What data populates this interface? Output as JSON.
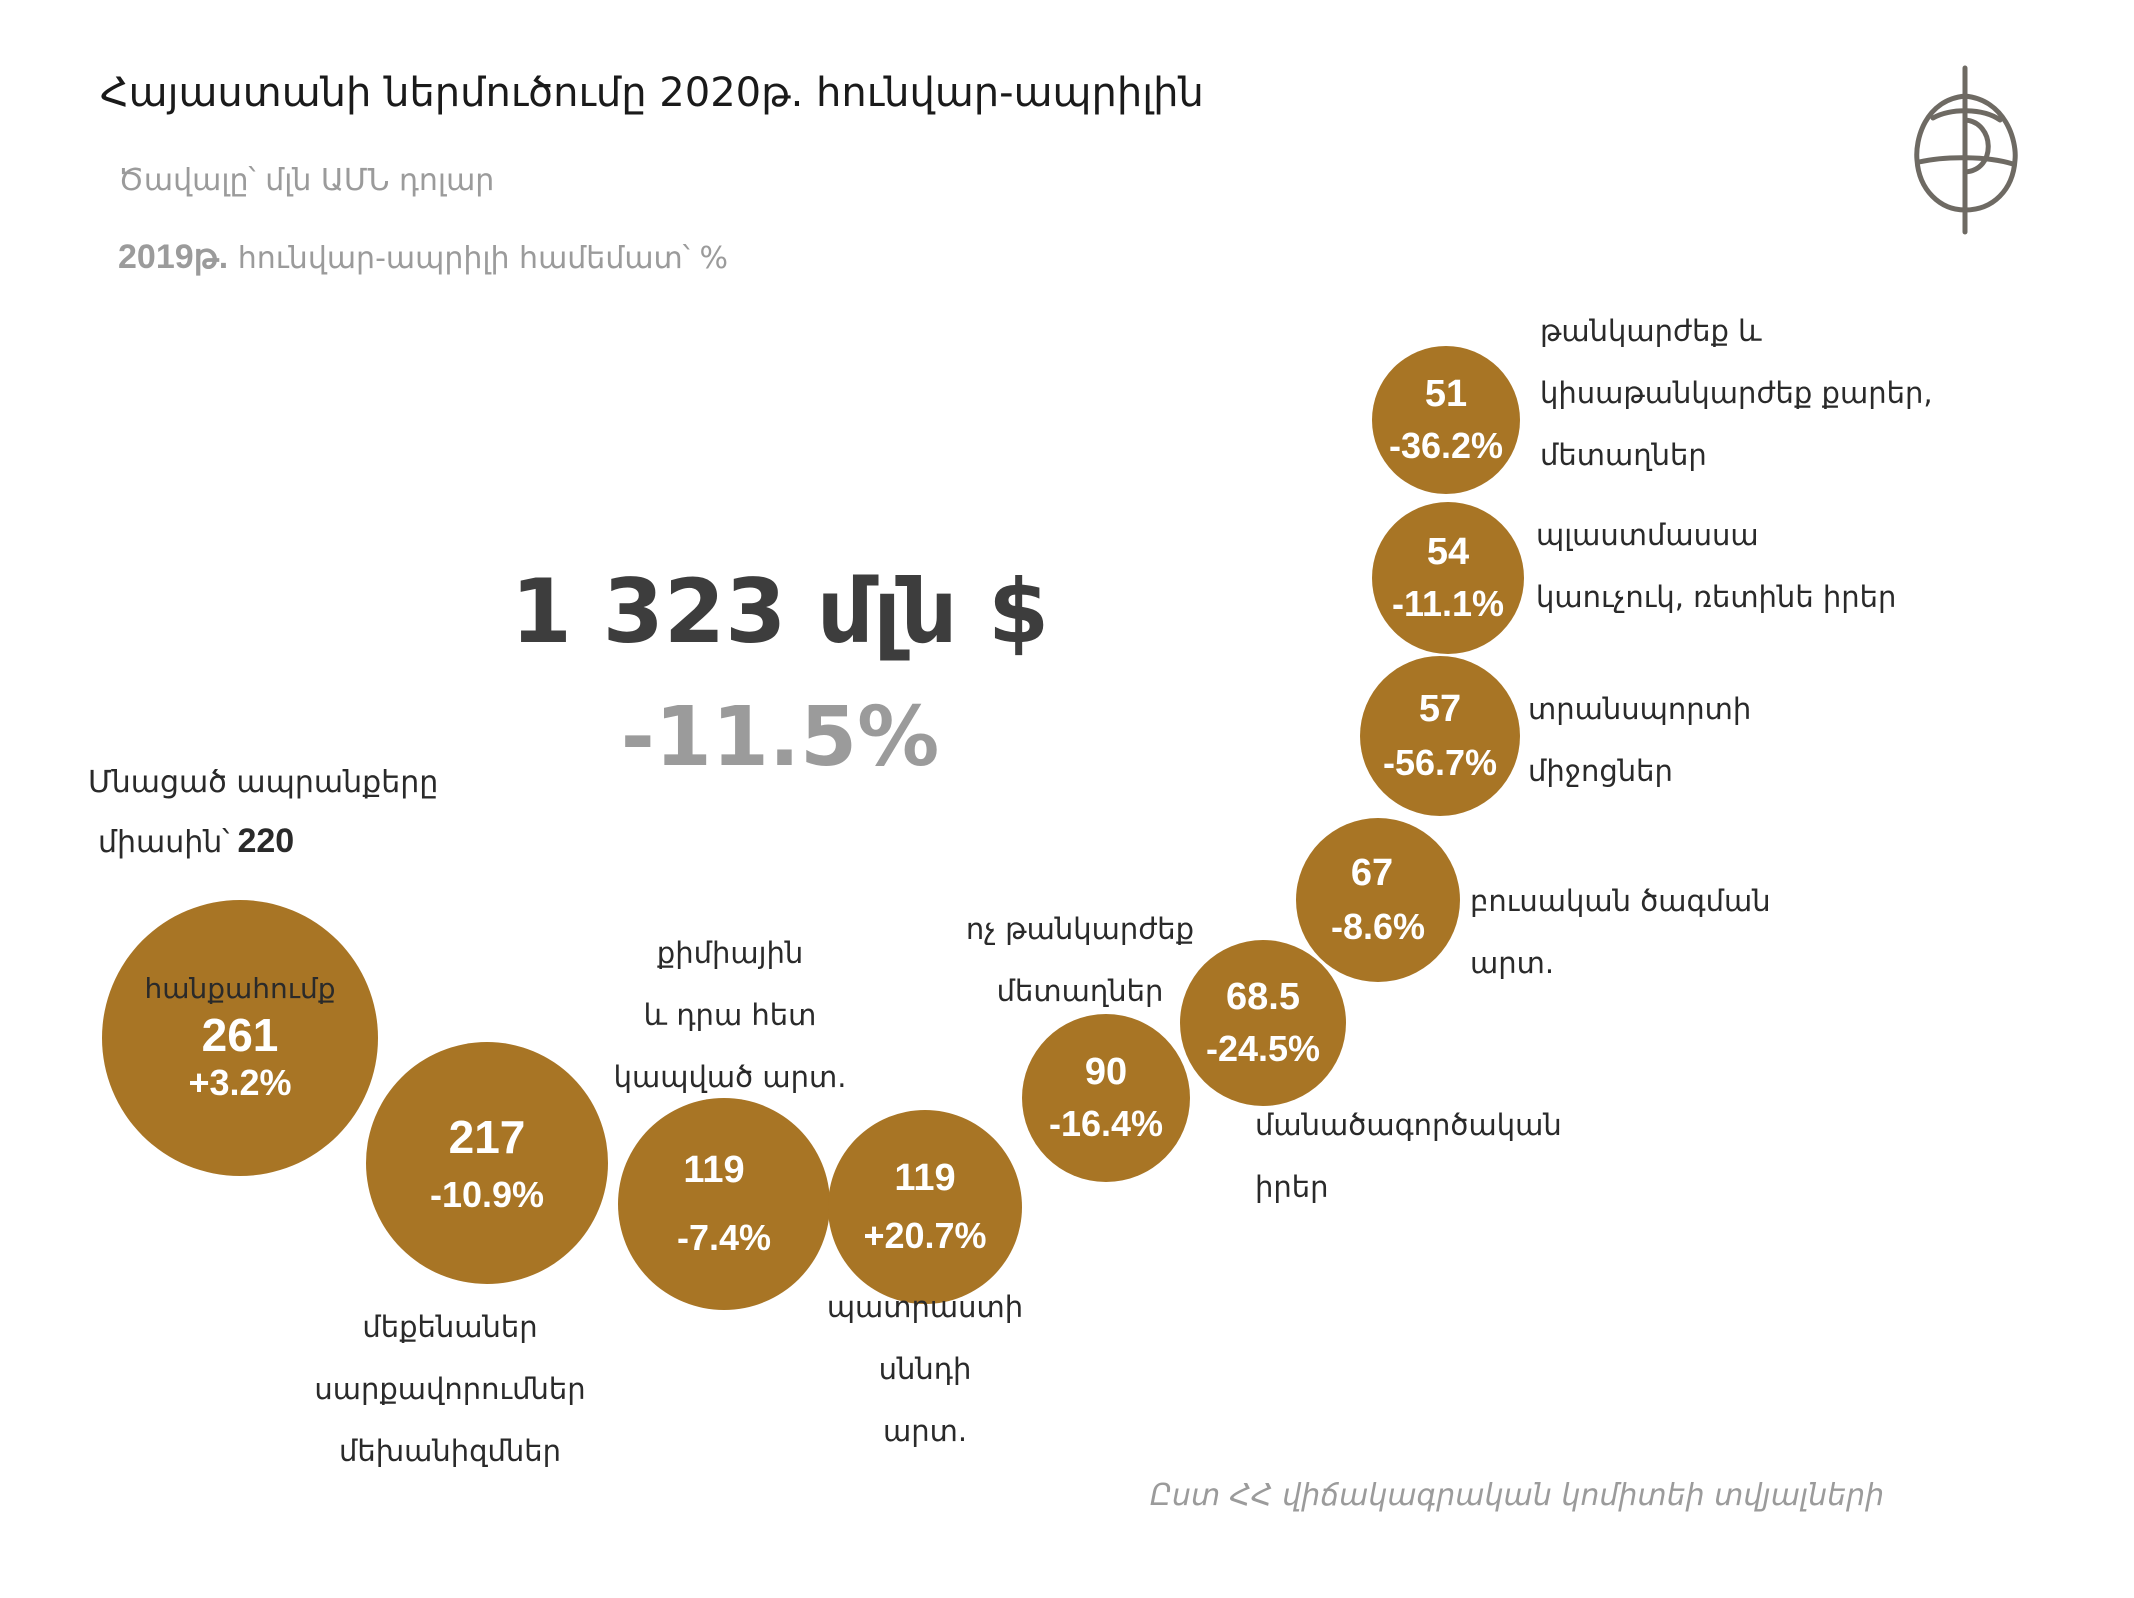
{
  "header": {
    "title": "Հայաստանի ներմուծումը 2020թ. հունվար-ապրիլին",
    "subtitle": "Ծավալը՝ մլն ԱՄՆ դոլար",
    "compare_year": "2019թ.",
    "compare_text": "հունվար-ապրիլի համեմատ՝ %"
  },
  "summary": {
    "total": "1 323 մլն $",
    "change": "-11.5%"
  },
  "rest": {
    "line1": "Մնացած ապրանքերը",
    "line2": "միասին՝",
    "value": "220"
  },
  "source": "Ըստ ՀՀ վիճակագրական կոմիտեի տվյալների",
  "chart_data": {
    "type": "bubble",
    "unit": "մլն ԱՄՆ դոլար",
    "categories": [
      "հանքահումք",
      "մեքենաներ սարքավորումներ մեխանիզմներ",
      "քիմիային և դրա հետ կապված արտ.",
      "պատրաստի սննդի արտ.",
      "ոչ թանկարժեք մետաղներ",
      "մանածագործական իրեր",
      "բուսական ծագման արտ.",
      "տրանսպորտի միջոցներ",
      "պլաստմասսա կաուչուկ, ռետինե իրեր",
      "թանկարժեք և կիսաթանկարժեք քարեր, մետաղներ"
    ],
    "values": [
      261,
      217,
      119,
      119,
      90,
      68.5,
      67,
      57,
      54,
      51
    ],
    "changes_pct": [
      3.2,
      -10.9,
      -7.4,
      20.7,
      -16.4,
      -24.5,
      -8.6,
      -56.7,
      -11.1,
      -36.2
    ],
    "display": [
      {
        "value": "261",
        "change": "+3.2%",
        "label_lines": [
          "հանքահումք"
        ]
      },
      {
        "value": "217",
        "change": "-10.9%",
        "label_lines": [
          "մեքենաներ",
          "սարքավորումներ",
          "մեխանիզմներ"
        ]
      },
      {
        "value": "119",
        "change": "-7.4%",
        "label_lines": [
          "քիմիային",
          "և դրա հետ",
          "կապված արտ."
        ]
      },
      {
        "value": "119",
        "change": "+20.7%",
        "label_lines": [
          "պատրաստի",
          "սննդի",
          "արտ."
        ]
      },
      {
        "value": "90",
        "change": "-16.4%",
        "label_lines": [
          "ոչ թանկարժեք",
          "մետաղներ"
        ]
      },
      {
        "value": "68.5",
        "change": "-24.5%",
        "label_lines": [
          "մանածագործական",
          "իրեր"
        ]
      },
      {
        "value": "67",
        "change": "-8.6%",
        "label_lines": [
          "բուսական ծագման",
          "արտ."
        ]
      },
      {
        "value": "57",
        "change": "-56.7%",
        "label_lines": [
          "տրանսպորտի",
          "միջոցներ"
        ]
      },
      {
        "value": "54",
        "change": "-11.1%",
        "label_lines": [
          "պլաստմասսա",
          "կաուչուկ, ռետինե իրեր"
        ]
      },
      {
        "value": "51",
        "change": "-36.2%",
        "label_lines": [
          "թանկարժեք և",
          "կիսաթանկարժեք քարեր,",
          "մետաղներ"
        ]
      }
    ],
    "title": "Հայաստանի ներմուծումը 2020թ. հունվար-ապրիլին",
    "colors": {
      "bubble": "#a87525",
      "text_on_bubble": "#ffffff"
    }
  }
}
